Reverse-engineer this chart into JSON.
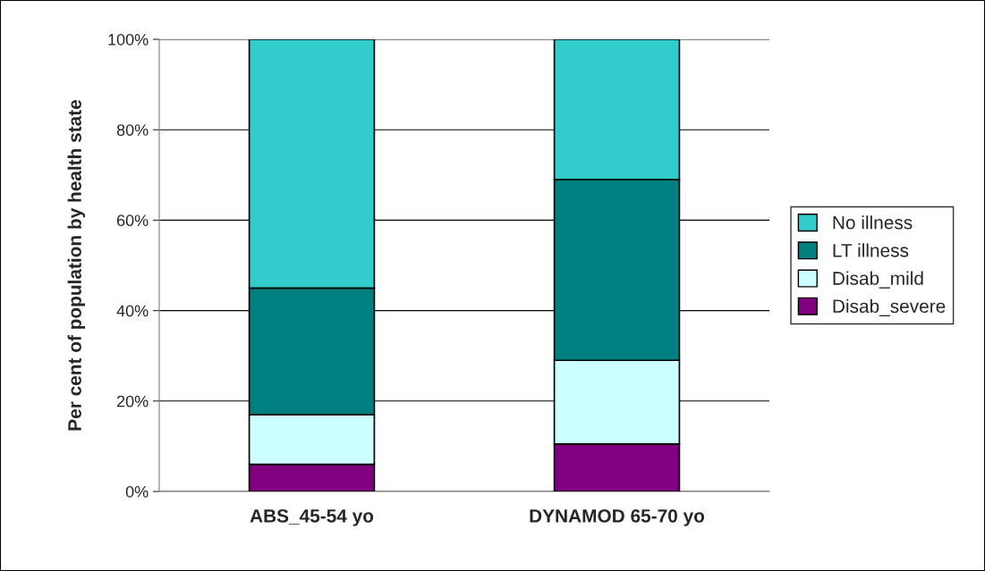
{
  "chart_data": {
    "type": "bar",
    "stacked": true,
    "ylabel": "Per cent of population by health state",
    "categories": [
      "ABS_45-54 yo",
      "DYNAMOD 65-70 yo"
    ],
    "series": [
      {
        "name": "Disab_severe",
        "color": "#800080",
        "values": [
          6,
          10.5
        ]
      },
      {
        "name": "Disab_mild",
        "color": "#ccffff",
        "values": [
          11,
          18.5
        ]
      },
      {
        "name": "LT illness",
        "color": "#008080",
        "values": [
          28,
          40
        ]
      },
      {
        "name": "No illness",
        "color": "#33cccc",
        "values": [
          55,
          31
        ]
      }
    ],
    "ylim": [
      0,
      100
    ],
    "yticks": [
      {
        "value": 0,
        "label": "0%"
      },
      {
        "value": 20,
        "label": "20%"
      },
      {
        "value": 40,
        "label": "40%"
      },
      {
        "value": 60,
        "label": "60%"
      },
      {
        "value": 80,
        "label": "80%"
      },
      {
        "value": 100,
        "label": "100%"
      }
    ],
    "grid": "y",
    "legend": "right"
  }
}
